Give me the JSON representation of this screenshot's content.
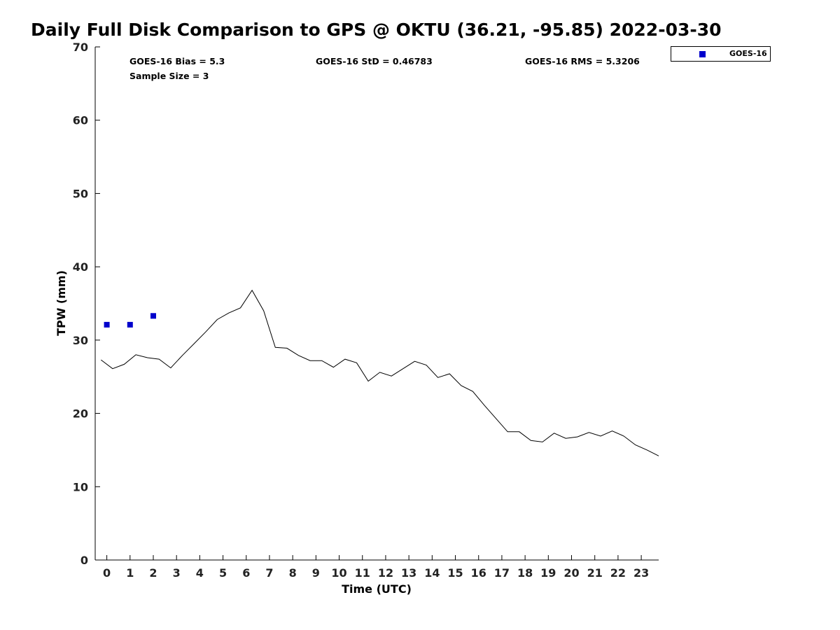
{
  "chart_data": {
    "type": "line",
    "title": "Daily Full Disk Comparison to GPS @ OKTU (36.21, -95.85) 2022-03-30",
    "xlabel": "Time (UTC)",
    "ylabel": "TPW (mm)",
    "xlim": [
      -0.5,
      23.75
    ],
    "ylim": [
      0,
      70
    ],
    "xticks": [
      0,
      1,
      2,
      3,
      4,
      5,
      6,
      7,
      8,
      9,
      10,
      11,
      12,
      13,
      14,
      15,
      16,
      17,
      18,
      19,
      20,
      21,
      22,
      23
    ],
    "yticks": [
      0,
      10,
      20,
      30,
      40,
      50,
      60,
      70
    ],
    "grid": false,
    "legend_position": "top-right-outside",
    "annotations": {
      "bias": "GOES-16 Bias = 5.3",
      "std": "GOES-16 StD = 0.46783",
      "rms": "GOES-16 RMS = 5.3206",
      "sample": "Sample Size = 3"
    },
    "gps_series": {
      "color": "#000000",
      "x": [
        -0.25,
        0.25,
        0.75,
        1.25,
        1.75,
        2.25,
        2.75,
        3.25,
        3.75,
        4.25,
        4.75,
        5.25,
        5.75,
        6.25,
        6.75,
        7.25,
        7.75,
        8.25,
        8.75,
        9.25,
        9.75,
        10.25,
        10.75,
        11.25,
        11.75,
        12.25,
        12.75,
        13.25,
        13.75,
        14.25,
        14.75,
        15.25,
        15.75,
        16.25,
        16.75,
        17.25,
        17.75,
        18.25,
        18.75,
        19.25,
        19.75,
        20.25,
        20.75,
        21.25,
        21.75,
        22.25,
        22.75,
        23.25,
        23.75
      ],
      "y": [
        27.3,
        26.1,
        26.7,
        28.0,
        27.6,
        27.4,
        26.2,
        27.9,
        29.5,
        31.1,
        32.8,
        33.7,
        34.4,
        36.8,
        34.0,
        29.0,
        28.9,
        27.9,
        27.2,
        27.2,
        26.3,
        27.4,
        26.9,
        24.4,
        25.6,
        25.1,
        26.1,
        27.1,
        26.6,
        24.9,
        25.4,
        23.8,
        23.0,
        21.1,
        19.3,
        17.5,
        17.5,
        16.3,
        16.1,
        17.3,
        16.6,
        16.8,
        17.4,
        16.9,
        17.6,
        16.9,
        15.7,
        15.0,
        14.2
      ]
    },
    "series": [
      {
        "name": "GOES-16",
        "color": "#0000cc",
        "x": [
          0,
          1,
          2
        ],
        "y": [
          32.1,
          32.1,
          33.3
        ]
      }
    ]
  }
}
